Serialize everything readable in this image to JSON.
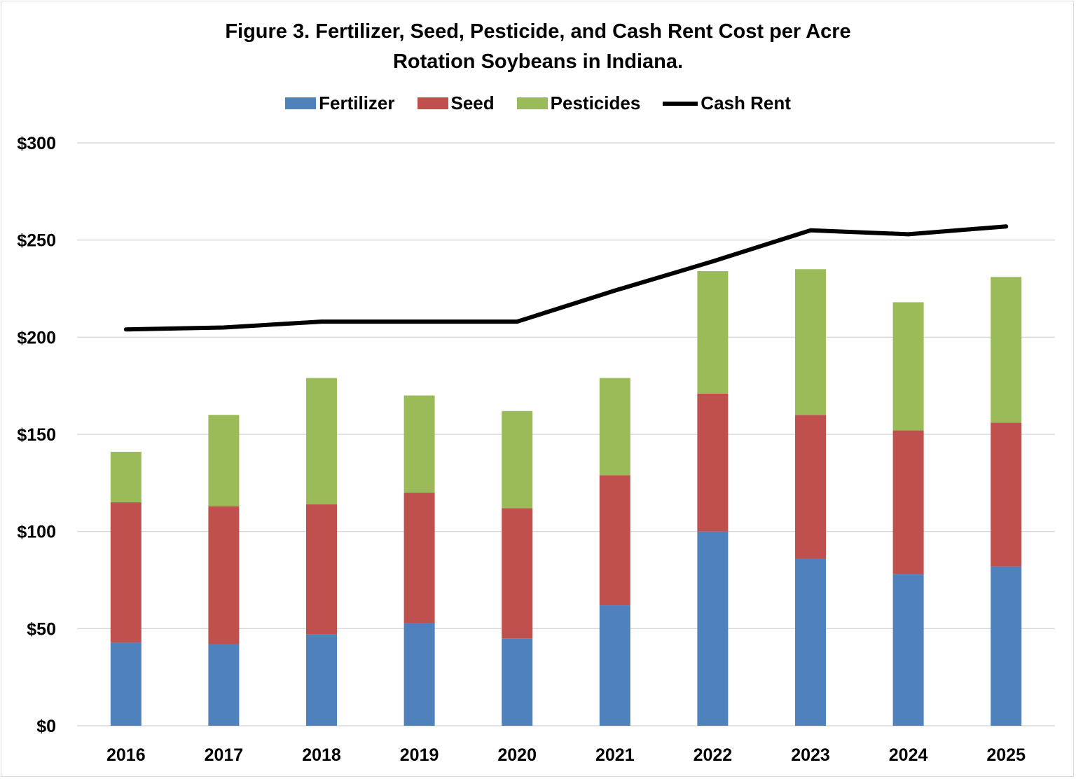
{
  "chart_data": {
    "type": "bar",
    "stacked": true,
    "title_lines": [
      "Figure 3. Fertilizer, Seed, Pesticide, and Cash Rent Cost per Acre",
      "Rotation Soybeans in Indiana."
    ],
    "categories": [
      "2016",
      "2017",
      "2018",
      "2019",
      "2020",
      "2021",
      "2022",
      "2023",
      "2024",
      "2025"
    ],
    "series": [
      {
        "name": "Fertilizer",
        "type": "bar",
        "color": "#4f81bd",
        "values": [
          43,
          42,
          47,
          53,
          45,
          62,
          100,
          86,
          78,
          82
        ]
      },
      {
        "name": "Seed",
        "type": "bar",
        "color": "#c0504d",
        "values": [
          72,
          71,
          67,
          67,
          67,
          67,
          71,
          74,
          74,
          74
        ]
      },
      {
        "name": "Pesticides",
        "type": "bar",
        "color": "#9bbb59",
        "values": [
          26,
          47,
          65,
          50,
          50,
          50,
          63,
          75,
          66,
          75
        ]
      },
      {
        "name": "Cash Rent",
        "type": "line",
        "color": "#000000",
        "values": [
          204,
          205,
          208,
          208,
          208,
          224,
          239,
          255,
          253,
          257
        ]
      }
    ],
    "ylim": [
      0,
      300
    ],
    "yticks": [
      0,
      50,
      100,
      150,
      200,
      250,
      300
    ],
    "ytick_labels": [
      "$0",
      "$50",
      "$100",
      "$150",
      "$200",
      "$250",
      "$300"
    ],
    "xlabel": "",
    "ylabel": "",
    "grid": true,
    "legend_position": "top"
  }
}
